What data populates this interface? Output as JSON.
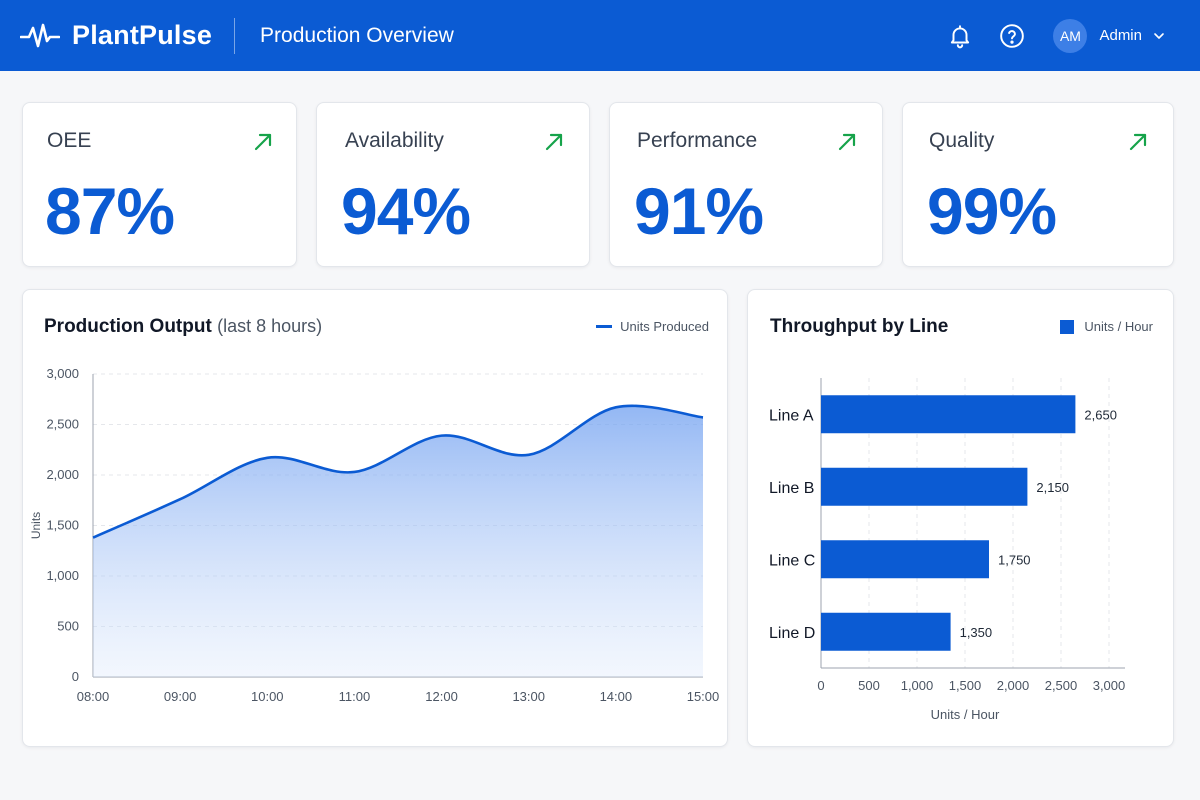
{
  "header": {
    "brand": "PlantPulse",
    "page_title": "Production Overview",
    "user_initials": "AM",
    "user_name": "Admin"
  },
  "colors": {
    "primary": "#0b5bd3",
    "trend_up": "#16a34a",
    "header_bg": "#0b5bd3"
  },
  "kpis": [
    {
      "label": "OEE",
      "value": "87%",
      "trend": "up"
    },
    {
      "label": "Availability",
      "value": "94%",
      "trend": "up"
    },
    {
      "label": "Performance",
      "value": "91%",
      "trend": "up"
    },
    {
      "label": "Quality",
      "value": "99%",
      "trend": "up"
    }
  ],
  "output_chart": {
    "title": "Production Output",
    "subtitle": "(last 8 hours)",
    "legend": "Units Produced"
  },
  "throughput_chart": {
    "title": "Throughput by Line",
    "legend": "Units / Hour"
  },
  "chart_data": [
    {
      "type": "area",
      "title": "Production Output (last 8 hours)",
      "ylabel": "Units",
      "xlabel": "",
      "x": [
        "08:00",
        "09:00",
        "10:00",
        "11:00",
        "12:00",
        "13:00",
        "14:00",
        "15:00"
      ],
      "series": [
        {
          "name": "Units Produced",
          "values": [
            1380,
            1760,
            2170,
            2030,
            2390,
            2200,
            2670,
            2570
          ]
        }
      ],
      "ylim": [
        0,
        3000
      ],
      "yticks": [
        "0",
        "500",
        "1,000",
        "1,500",
        "2,000",
        "2,500",
        "3,000"
      ],
      "ytick_values": [
        0,
        500,
        1000,
        1500,
        2000,
        2500,
        3000
      ],
      "grid": true,
      "legend_position": "top-right"
    },
    {
      "type": "bar",
      "orientation": "horizontal",
      "title": "Throughput by Line",
      "xlabel": "Units / Hour",
      "categories": [
        "Line A",
        "Line B",
        "Line C",
        "Line D"
      ],
      "series": [
        {
          "name": "Units / Hour",
          "values": [
            2650,
            2150,
            1750,
            1350
          ]
        }
      ],
      "value_labels": [
        "2,650",
        "2,150",
        "1,750",
        "1,350"
      ],
      "xlim": [
        0,
        3000
      ],
      "xticks": [
        "0",
        "500",
        "1,000",
        "1,500",
        "2,000",
        "2,500",
        "3,000"
      ],
      "xtick_values": [
        0,
        500,
        1000,
        1500,
        2000,
        2500,
        3000
      ],
      "grid": true,
      "legend_position": "top-right"
    }
  ]
}
